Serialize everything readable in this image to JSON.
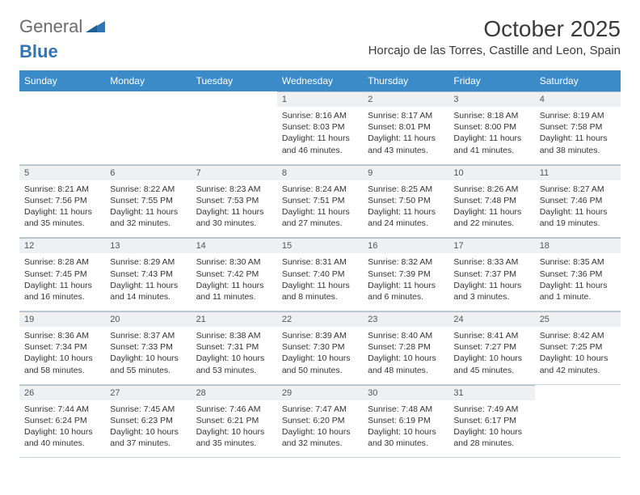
{
  "brand": {
    "general": "General",
    "blue": "Blue"
  },
  "title": "October 2025",
  "location": "Horcajo de las Torres, Castille and Leon, Spain",
  "colors": {
    "header_bg": "#3b8bc9",
    "header_text": "#ffffff",
    "daynum_bg": "#eef0f1",
    "cell_border": "#c7d4de",
    "logo_accent": "#2f74b5",
    "body_text": "#333333"
  },
  "weekdays": [
    "Sunday",
    "Monday",
    "Tuesday",
    "Wednesday",
    "Thursday",
    "Friday",
    "Saturday"
  ],
  "weeks": [
    [
      null,
      null,
      null,
      {
        "d": "1",
        "sr": "8:16 AM",
        "ss": "8:03 PM",
        "dl": "11 hours and 46 minutes."
      },
      {
        "d": "2",
        "sr": "8:17 AM",
        "ss": "8:01 PM",
        "dl": "11 hours and 43 minutes."
      },
      {
        "d": "3",
        "sr": "8:18 AM",
        "ss": "8:00 PM",
        "dl": "11 hours and 41 minutes."
      },
      {
        "d": "4",
        "sr": "8:19 AM",
        "ss": "7:58 PM",
        "dl": "11 hours and 38 minutes."
      }
    ],
    [
      {
        "d": "5",
        "sr": "8:21 AM",
        "ss": "7:56 PM",
        "dl": "11 hours and 35 minutes."
      },
      {
        "d": "6",
        "sr": "8:22 AM",
        "ss": "7:55 PM",
        "dl": "11 hours and 32 minutes."
      },
      {
        "d": "7",
        "sr": "8:23 AM",
        "ss": "7:53 PM",
        "dl": "11 hours and 30 minutes."
      },
      {
        "d": "8",
        "sr": "8:24 AM",
        "ss": "7:51 PM",
        "dl": "11 hours and 27 minutes."
      },
      {
        "d": "9",
        "sr": "8:25 AM",
        "ss": "7:50 PM",
        "dl": "11 hours and 24 minutes."
      },
      {
        "d": "10",
        "sr": "8:26 AM",
        "ss": "7:48 PM",
        "dl": "11 hours and 22 minutes."
      },
      {
        "d": "11",
        "sr": "8:27 AM",
        "ss": "7:46 PM",
        "dl": "11 hours and 19 minutes."
      }
    ],
    [
      {
        "d": "12",
        "sr": "8:28 AM",
        "ss": "7:45 PM",
        "dl": "11 hours and 16 minutes."
      },
      {
        "d": "13",
        "sr": "8:29 AM",
        "ss": "7:43 PM",
        "dl": "11 hours and 14 minutes."
      },
      {
        "d": "14",
        "sr": "8:30 AM",
        "ss": "7:42 PM",
        "dl": "11 hours and 11 minutes."
      },
      {
        "d": "15",
        "sr": "8:31 AM",
        "ss": "7:40 PM",
        "dl": "11 hours and 8 minutes."
      },
      {
        "d": "16",
        "sr": "8:32 AM",
        "ss": "7:39 PM",
        "dl": "11 hours and 6 minutes."
      },
      {
        "d": "17",
        "sr": "8:33 AM",
        "ss": "7:37 PM",
        "dl": "11 hours and 3 minutes."
      },
      {
        "d": "18",
        "sr": "8:35 AM",
        "ss": "7:36 PM",
        "dl": "11 hours and 1 minute."
      }
    ],
    [
      {
        "d": "19",
        "sr": "8:36 AM",
        "ss": "7:34 PM",
        "dl": "10 hours and 58 minutes."
      },
      {
        "d": "20",
        "sr": "8:37 AM",
        "ss": "7:33 PM",
        "dl": "10 hours and 55 minutes."
      },
      {
        "d": "21",
        "sr": "8:38 AM",
        "ss": "7:31 PM",
        "dl": "10 hours and 53 minutes."
      },
      {
        "d": "22",
        "sr": "8:39 AM",
        "ss": "7:30 PM",
        "dl": "10 hours and 50 minutes."
      },
      {
        "d": "23",
        "sr": "8:40 AM",
        "ss": "7:28 PM",
        "dl": "10 hours and 48 minutes."
      },
      {
        "d": "24",
        "sr": "8:41 AM",
        "ss": "7:27 PM",
        "dl": "10 hours and 45 minutes."
      },
      {
        "d": "25",
        "sr": "8:42 AM",
        "ss": "7:25 PM",
        "dl": "10 hours and 42 minutes."
      }
    ],
    [
      {
        "d": "26",
        "sr": "7:44 AM",
        "ss": "6:24 PM",
        "dl": "10 hours and 40 minutes."
      },
      {
        "d": "27",
        "sr": "7:45 AM",
        "ss": "6:23 PM",
        "dl": "10 hours and 37 minutes."
      },
      {
        "d": "28",
        "sr": "7:46 AM",
        "ss": "6:21 PM",
        "dl": "10 hours and 35 minutes."
      },
      {
        "d": "29",
        "sr": "7:47 AM",
        "ss": "6:20 PM",
        "dl": "10 hours and 32 minutes."
      },
      {
        "d": "30",
        "sr": "7:48 AM",
        "ss": "6:19 PM",
        "dl": "10 hours and 30 minutes."
      },
      {
        "d": "31",
        "sr": "7:49 AM",
        "ss": "6:17 PM",
        "dl": "10 hours and 28 minutes."
      },
      null
    ]
  ],
  "labels": {
    "sunrise": "Sunrise: ",
    "sunset": "Sunset: ",
    "daylight": "Daylight: "
  }
}
